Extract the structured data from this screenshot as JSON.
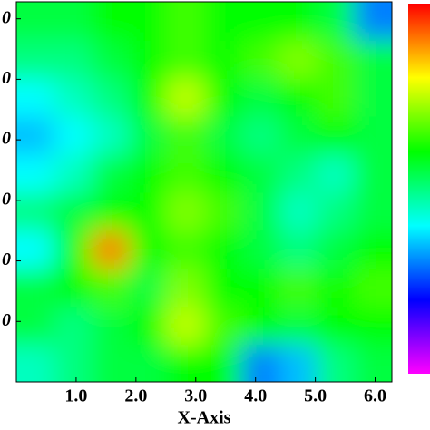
{
  "chart_data": {
    "type": "heatmap",
    "x_label": "X-Axis",
    "xlim": [
      0,
      6.28
    ],
    "ylim": [
      0,
      6.28
    ],
    "zlim": [
      0,
      1
    ],
    "xticks": [
      {
        "value": 1,
        "label": "1.0"
      },
      {
        "value": 2,
        "label": "2.0"
      },
      {
        "value": 3,
        "label": "3.0"
      },
      {
        "value": 4,
        "label": "4.0"
      },
      {
        "value": 5,
        "label": "5.0"
      },
      {
        "value": 6,
        "label": "6.0"
      }
    ],
    "yticks": [
      {
        "value": 1,
        "label": "0"
      },
      {
        "value": 2,
        "label": "0"
      },
      {
        "value": 3,
        "label": "0"
      },
      {
        "value": 4,
        "label": "0"
      },
      {
        "value": 5,
        "label": "0"
      },
      {
        "value": 6,
        "label": "0"
      }
    ],
    "colormap": [
      "#ff00ff",
      "#0000ff",
      "#00ffff",
      "#00ff00",
      "#ffff00",
      "#ff0000"
    ],
    "z": [
      [
        0.45,
        0.5,
        0.55,
        0.55,
        0.6,
        0.6,
        0.3,
        0.35,
        0.5,
        0.55
      ],
      [
        0.55,
        0.5,
        0.55,
        0.6,
        0.75,
        0.65,
        0.6,
        0.55,
        0.6,
        0.6
      ],
      [
        0.55,
        0.6,
        0.65,
        0.55,
        0.7,
        0.6,
        0.6,
        0.65,
        0.6,
        0.65
      ],
      [
        0.4,
        0.6,
        0.9,
        0.6,
        0.65,
        0.6,
        0.55,
        0.5,
        0.55,
        0.6
      ],
      [
        0.5,
        0.55,
        0.6,
        0.6,
        0.7,
        0.65,
        0.55,
        0.45,
        0.5,
        0.55
      ],
      [
        0.4,
        0.45,
        0.55,
        0.6,
        0.65,
        0.6,
        0.55,
        0.5,
        0.45,
        0.55
      ],
      [
        0.35,
        0.4,
        0.45,
        0.55,
        0.65,
        0.55,
        0.5,
        0.55,
        0.6,
        0.55
      ],
      [
        0.4,
        0.45,
        0.5,
        0.6,
        0.75,
        0.6,
        0.55,
        0.6,
        0.65,
        0.55
      ],
      [
        0.5,
        0.5,
        0.55,
        0.6,
        0.65,
        0.6,
        0.65,
        0.7,
        0.65,
        0.55
      ],
      [
        0.55,
        0.55,
        0.6,
        0.6,
        0.65,
        0.6,
        0.6,
        0.6,
        0.55,
        0.3
      ]
    ]
  }
}
